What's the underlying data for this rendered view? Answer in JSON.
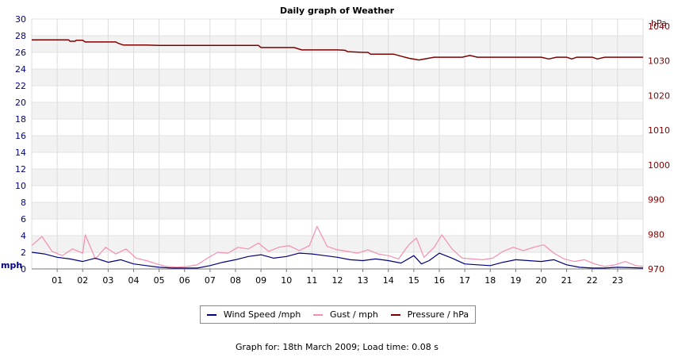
{
  "chart_data": {
    "type": "line",
    "title": "Daily graph of Weather",
    "x_tick_labels": [
      "01",
      "02",
      "03",
      "04",
      "05",
      "06",
      "07",
      "08",
      "09",
      "10",
      "11",
      "12",
      "13",
      "14",
      "15",
      "16",
      "17",
      "18",
      "19",
      "20",
      "21",
      "22",
      "23"
    ],
    "x_range_hours": [
      0,
      24
    ],
    "y_left": {
      "unit": "mph",
      "range": [
        0,
        30
      ],
      "ticks": [
        0,
        2,
        4,
        6,
        8,
        10,
        12,
        14,
        16,
        18,
        20,
        22,
        24,
        26,
        28,
        30
      ]
    },
    "y_right": {
      "unit": "hPa",
      "range": [
        970,
        1042
      ],
      "ticks": [
        970,
        980,
        990,
        1000,
        1010,
        1020,
        1030,
        1040
      ]
    },
    "grid": true,
    "legend_position": "bottom-center",
    "series": [
      {
        "name": "Wind Speed /mph",
        "axis": "left",
        "color": "#000080",
        "points": [
          [
            0,
            2.0
          ],
          [
            0.5,
            1.8
          ],
          [
            1,
            1.4
          ],
          [
            1.5,
            1.2
          ],
          [
            2,
            0.9
          ],
          [
            2.5,
            1.3
          ],
          [
            3,
            0.8
          ],
          [
            3.5,
            1.1
          ],
          [
            4,
            0.6
          ],
          [
            4.5,
            0.4
          ],
          [
            5,
            0.2
          ],
          [
            5.5,
            0.1
          ],
          [
            6,
            0.1
          ],
          [
            6.5,
            0.1
          ],
          [
            7,
            0.4
          ],
          [
            7.5,
            0.8
          ],
          [
            8,
            1.1
          ],
          [
            8.5,
            1.5
          ],
          [
            9,
            1.7
          ],
          [
            9.5,
            1.3
          ],
          [
            10,
            1.5
          ],
          [
            10.5,
            1.9
          ],
          [
            11,
            1.8
          ],
          [
            11.5,
            1.6
          ],
          [
            12,
            1.4
          ],
          [
            12.5,
            1.1
          ],
          [
            13,
            1.0
          ],
          [
            13.5,
            1.2
          ],
          [
            14,
            1.0
          ],
          [
            14.5,
            0.7
          ],
          [
            15,
            1.6
          ],
          [
            15.3,
            0.6
          ],
          [
            15.6,
            1.0
          ],
          [
            16,
            1.9
          ],
          [
            16.5,
            1.3
          ],
          [
            17,
            0.6
          ],
          [
            17.5,
            0.5
          ],
          [
            18,
            0.4
          ],
          [
            18.5,
            0.8
          ],
          [
            19,
            1.1
          ],
          [
            19.5,
            1.0
          ],
          [
            20,
            0.9
          ],
          [
            20.5,
            1.1
          ],
          [
            21,
            0.5
          ],
          [
            21.5,
            0.2
          ],
          [
            22,
            0.1
          ],
          [
            22.5,
            0.1
          ],
          [
            23,
            0.2
          ],
          [
            24,
            0.1
          ]
        ]
      },
      {
        "name": "Gust / mph",
        "axis": "left",
        "color": "#f48fb1",
        "points": [
          [
            0,
            2.8
          ],
          [
            0.4,
            3.9
          ],
          [
            0.8,
            2.1
          ],
          [
            1.2,
            1.6
          ],
          [
            1.6,
            2.4
          ],
          [
            2,
            1.9
          ],
          [
            2.1,
            4.1
          ],
          [
            2.5,
            1.2
          ],
          [
            2.9,
            2.6
          ],
          [
            3.3,
            1.8
          ],
          [
            3.7,
            2.4
          ],
          [
            4.1,
            1.3
          ],
          [
            4.5,
            1.0
          ],
          [
            4.9,
            0.6
          ],
          [
            5.3,
            0.3
          ],
          [
            5.7,
            0.2
          ],
          [
            6.1,
            0.3
          ],
          [
            6.5,
            0.5
          ],
          [
            6.9,
            1.3
          ],
          [
            7.3,
            2.0
          ],
          [
            7.7,
            1.9
          ],
          [
            8.1,
            2.6
          ],
          [
            8.5,
            2.4
          ],
          [
            8.9,
            3.1
          ],
          [
            9.3,
            2.1
          ],
          [
            9.7,
            2.6
          ],
          [
            10.1,
            2.8
          ],
          [
            10.5,
            2.2
          ],
          [
            10.9,
            2.8
          ],
          [
            11.2,
            5.1
          ],
          [
            11.6,
            2.7
          ],
          [
            12,
            2.3
          ],
          [
            12.4,
            2.1
          ],
          [
            12.8,
            1.9
          ],
          [
            13.2,
            2.3
          ],
          [
            13.6,
            1.8
          ],
          [
            14,
            1.6
          ],
          [
            14.4,
            1.2
          ],
          [
            14.8,
            2.9
          ],
          [
            15.1,
            3.7
          ],
          [
            15.4,
            1.4
          ],
          [
            15.8,
            2.6
          ],
          [
            16.1,
            4.1
          ],
          [
            16.5,
            2.4
          ],
          [
            16.9,
            1.3
          ],
          [
            17.3,
            1.2
          ],
          [
            17.7,
            1.1
          ],
          [
            18.1,
            1.3
          ],
          [
            18.5,
            2.1
          ],
          [
            18.9,
            2.6
          ],
          [
            19.3,
            2.2
          ],
          [
            19.7,
            2.6
          ],
          [
            20.1,
            2.9
          ],
          [
            20.5,
            1.9
          ],
          [
            20.9,
            1.2
          ],
          [
            21.3,
            0.9
          ],
          [
            21.7,
            1.1
          ],
          [
            22.1,
            0.6
          ],
          [
            22.5,
            0.3
          ],
          [
            22.9,
            0.5
          ],
          [
            23.3,
            0.9
          ],
          [
            23.7,
            0.4
          ],
          [
            24,
            0.3
          ]
        ]
      },
      {
        "name": "Pressure / hPa",
        "axis": "right",
        "color": "#800000",
        "points": [
          [
            0,
            1036
          ],
          [
            1.45,
            1036
          ],
          [
            1.5,
            1035.6
          ],
          [
            1.7,
            1035.6
          ],
          [
            1.75,
            1035.9
          ],
          [
            2,
            1035.9
          ],
          [
            2.1,
            1035.4
          ],
          [
            3.3,
            1035.4
          ],
          [
            3.4,
            1035.0
          ],
          [
            3.6,
            1034.5
          ],
          [
            4.5,
            1034.5
          ],
          [
            5,
            1034.4
          ],
          [
            7.5,
            1034.4
          ],
          [
            8.5,
            1034.4
          ],
          [
            8.9,
            1034.4
          ],
          [
            9.0,
            1033.8
          ],
          [
            10.3,
            1033.8
          ],
          [
            10.6,
            1033.1
          ],
          [
            12,
            1033.1
          ],
          [
            12.3,
            1033.0
          ],
          [
            12.4,
            1032.6
          ],
          [
            13,
            1032.4
          ],
          [
            13.2,
            1032.4
          ],
          [
            13.3,
            1031.9
          ],
          [
            14.2,
            1031.9
          ],
          [
            14.5,
            1031.3
          ],
          [
            14.8,
            1030.7
          ],
          [
            15.2,
            1030.2
          ],
          [
            15.5,
            1030.6
          ],
          [
            15.8,
            1031.0
          ],
          [
            16.4,
            1031.0
          ],
          [
            16.9,
            1031.0
          ],
          [
            17.2,
            1031.5
          ],
          [
            17.5,
            1031.0
          ],
          [
            18.1,
            1031.0
          ],
          [
            20,
            1031.0
          ],
          [
            20.3,
            1030.5
          ],
          [
            20.6,
            1031.0
          ],
          [
            21,
            1031.0
          ],
          [
            21.2,
            1030.5
          ],
          [
            21.4,
            1031.0
          ],
          [
            22,
            1031.0
          ],
          [
            22.2,
            1030.5
          ],
          [
            22.5,
            1031.0
          ],
          [
            24,
            1031.0
          ]
        ]
      }
    ]
  },
  "footer": "Graph for: 18th March 2009; Load time: 0.08 s"
}
